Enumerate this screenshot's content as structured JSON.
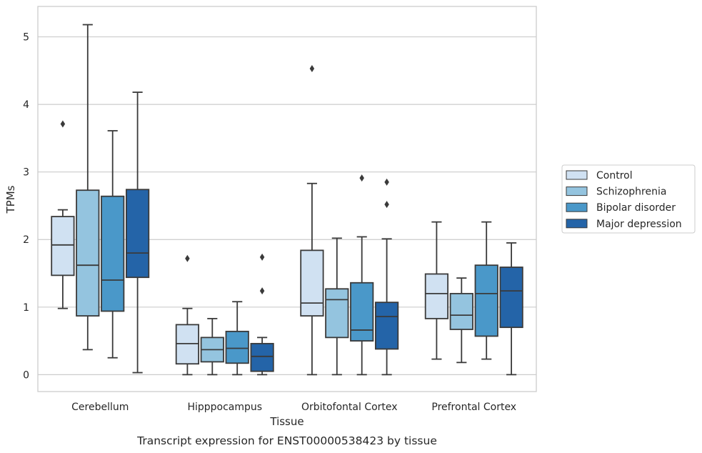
{
  "chart_data": {
    "type": "box",
    "title": "",
    "caption": "Transcript expression for ENST00000538423 by tissue",
    "xlabel": "Tissue",
    "ylabel": "TPMs",
    "ylim": [
      -0.25,
      5.45
    ],
    "yticks": [
      0,
      1,
      2,
      3,
      4,
      5
    ],
    "grid": "horizontal",
    "legend_position": "right",
    "categories": [
      "Cerebellum",
      "Hipppocampus",
      "Orbitofontal Cortex",
      "Prefrontal Cortex"
    ],
    "series": [
      {
        "name": "Control",
        "color": "#d0e1f2",
        "boxes": [
          {
            "whislo": 0.98,
            "q1": 1.47,
            "med": 1.92,
            "q3": 2.34,
            "whishi": 2.44,
            "fliers": [
              3.71
            ]
          },
          {
            "whislo": 0.0,
            "q1": 0.16,
            "med": 0.46,
            "q3": 0.74,
            "whishi": 0.98,
            "fliers": [
              1.72
            ]
          },
          {
            "whislo": 0.0,
            "q1": 0.87,
            "med": 1.06,
            "q3": 1.84,
            "whishi": 2.83,
            "fliers": [
              4.53
            ]
          },
          {
            "whislo": 0.23,
            "q1": 0.83,
            "med": 1.2,
            "q3": 1.49,
            "whishi": 2.26,
            "fliers": []
          }
        ]
      },
      {
        "name": "Schizophrenia",
        "color": "#94c4df",
        "boxes": [
          {
            "whislo": 0.37,
            "q1": 0.87,
            "med": 1.62,
            "q3": 2.73,
            "whishi": 5.18,
            "fliers": []
          },
          {
            "whislo": 0.0,
            "q1": 0.19,
            "med": 0.37,
            "q3": 0.55,
            "whishi": 0.83,
            "fliers": []
          },
          {
            "whislo": 0.0,
            "q1": 0.55,
            "med": 1.11,
            "q3": 1.27,
            "whishi": 2.02,
            "fliers": []
          },
          {
            "whislo": 0.18,
            "q1": 0.67,
            "med": 0.88,
            "q3": 1.2,
            "whishi": 1.43,
            "fliers": []
          }
        ]
      },
      {
        "name": "Bipolar disorder",
        "color": "#4a98c9",
        "boxes": [
          {
            "whislo": 0.25,
            "q1": 0.94,
            "med": 1.4,
            "q3": 2.64,
            "whishi": 3.61,
            "fliers": []
          },
          {
            "whislo": 0.0,
            "q1": 0.17,
            "med": 0.39,
            "q3": 0.64,
            "whishi": 1.08,
            "fliers": []
          },
          {
            "whislo": 0.0,
            "q1": 0.5,
            "med": 0.66,
            "q3": 1.36,
            "whishi": 2.04,
            "fliers": [
              2.91
            ]
          },
          {
            "whislo": 0.23,
            "q1": 0.57,
            "med": 1.2,
            "q3": 1.62,
            "whishi": 2.26,
            "fliers": []
          }
        ]
      },
      {
        "name": "Major depression",
        "color": "#2464a8",
        "boxes": [
          {
            "whislo": 0.03,
            "q1": 1.44,
            "med": 1.8,
            "q3": 2.74,
            "whishi": 4.18,
            "fliers": []
          },
          {
            "whislo": 0.0,
            "q1": 0.05,
            "med": 0.27,
            "q3": 0.46,
            "whishi": 0.55,
            "fliers": [
              1.24,
              1.74
            ]
          },
          {
            "whislo": 0.0,
            "q1": 0.38,
            "med": 0.86,
            "q3": 1.07,
            "whishi": 2.01,
            "fliers": [
              2.52,
              2.85
            ]
          },
          {
            "whislo": 0.0,
            "q1": 0.7,
            "med": 1.24,
            "q3": 1.59,
            "whishi": 1.95,
            "fliers": []
          }
        ]
      }
    ]
  }
}
